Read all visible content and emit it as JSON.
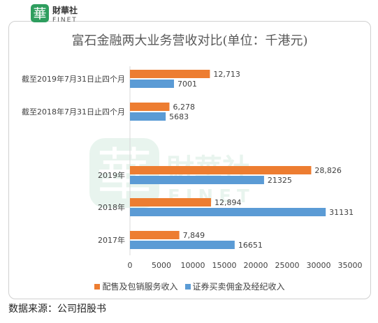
{
  "logo": {
    "glyph": "華",
    "name": "財華社",
    "sub": "FINET"
  },
  "watermark": {
    "glyph": "華",
    "name": "財華社",
    "sub": "FINET"
  },
  "source": "数据来源：公司招股书",
  "colors": {
    "orange": "#ED7D31",
    "blue": "#5B9BD5",
    "logo_green": "#2e9e5e"
  },
  "chart_data": {
    "type": "bar",
    "orientation": "horizontal",
    "title": "富石金融两大业务营收对比(单位：千港元)",
    "categories": [
      "截至2019年7月31日止四个月",
      "截至2018年7月31日止四个月",
      "2019年",
      "2018年",
      "2017年"
    ],
    "series": [
      {
        "name": "配售及包销服务收入",
        "color": "#ED7D31",
        "values": [
          12713,
          6278,
          28826,
          12894,
          7849
        ],
        "labels": [
          "12,713",
          "6,278",
          "28,826",
          "12,894",
          "7,849"
        ]
      },
      {
        "name": "证券买卖佣金及经纪收入",
        "color": "#5B9BD5",
        "values": [
          7001,
          5683,
          21325,
          31131,
          16651
        ],
        "labels": [
          "7001",
          "5683",
          "21325",
          "31131",
          "16651"
        ]
      }
    ],
    "xlim": [
      0,
      35000
    ],
    "xticks": [
      0,
      5000,
      10000,
      15000,
      20000,
      25000,
      30000,
      35000
    ],
    "xticklabels": [
      "0",
      "5000",
      "10000",
      "15000",
      "20000",
      "25000",
      "30000",
      "35000"
    ],
    "grid": false,
    "legend": "bottom"
  }
}
